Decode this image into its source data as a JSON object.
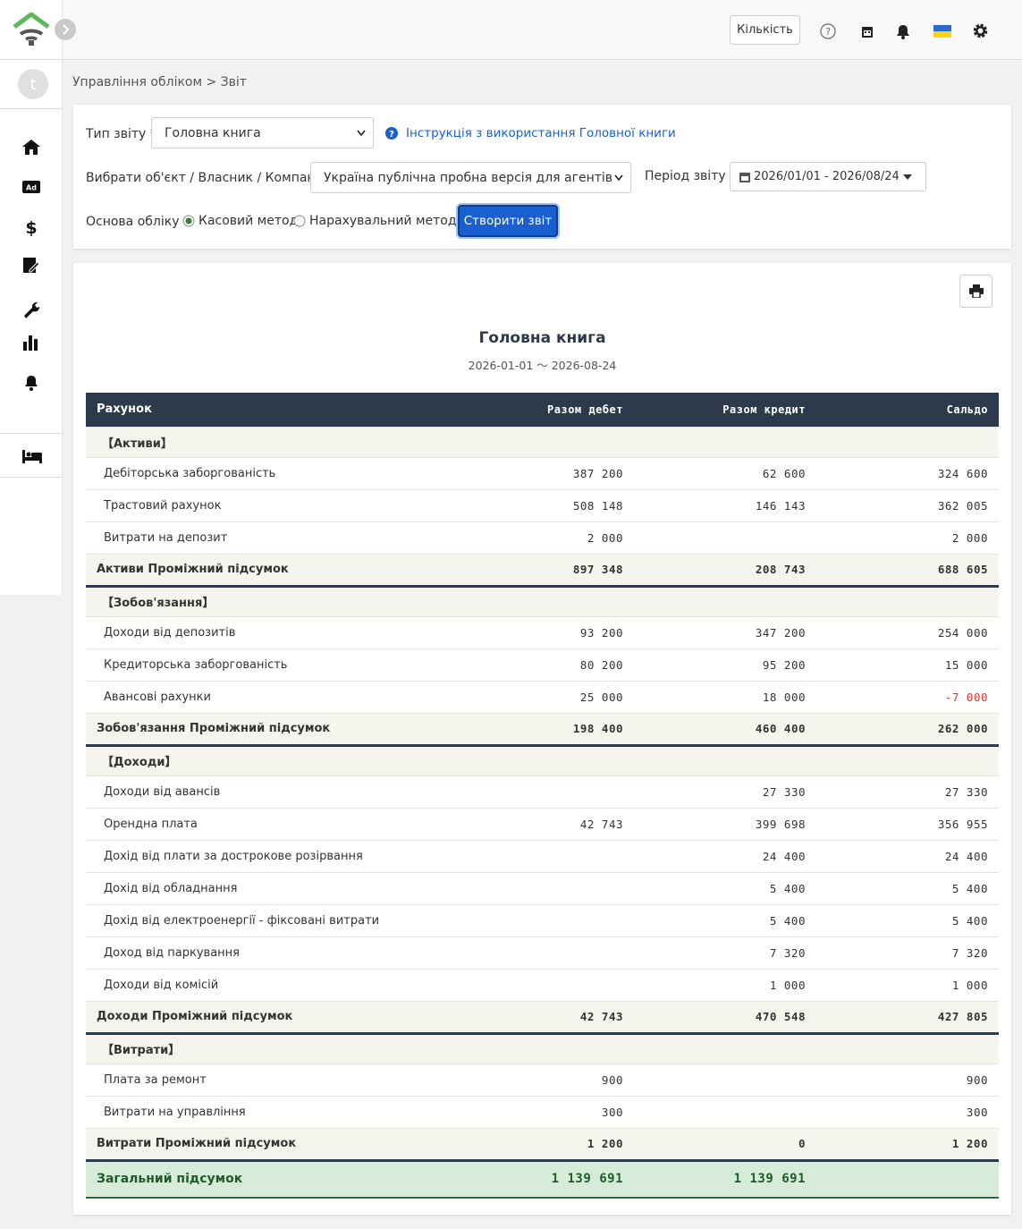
{
  "topbar": {
    "quantity_button": "Кількість"
  },
  "sidebar": {
    "avatar": "t"
  },
  "breadcrumb": "Управління обліком > Звіт",
  "form": {
    "report_type_label": "Тип звіту",
    "required_mark": "*",
    "report_type_value": "Головна книга",
    "help_link": "Інструкція з використання Головної книги",
    "object_label": "Вибрати об'єкт / Власник / Компанія",
    "object_value": "Україна публічна пробна версія для агентів",
    "period_label": "Період звіту",
    "period_value": "2026/01/01 - 2026/08/24",
    "basis_label": "Основа обліку",
    "basis_options": [
      "Касовий метод",
      "Нарахувальний метод"
    ],
    "submit": "Створити звіт"
  },
  "report": {
    "title": "Головна книга",
    "range": "2026-01-01 〜 2026-08-24",
    "columns": [
      "Рахунок",
      "Разом дебет",
      "Разом кредит",
      "Сальдо"
    ],
    "rows": [
      {
        "kind": "section",
        "label": "【Активи】"
      },
      {
        "kind": "item",
        "label": "Дебіторська заборгованість",
        "debit": "387 200",
        "credit": "62 600",
        "balance": "324 600"
      },
      {
        "kind": "item",
        "label": "Трастовий рахунок",
        "debit": "508 148",
        "credit": "146 143",
        "balance": "362 005"
      },
      {
        "kind": "item",
        "label": "Витрати на депозит",
        "debit": "2 000",
        "balance": "2 000"
      },
      {
        "kind": "subtotal",
        "label": "Активи Проміжний підсумок",
        "debit": "897 348",
        "credit": "208 743",
        "balance": "688 605"
      },
      {
        "kind": "section",
        "label": "【Зобов'язання】"
      },
      {
        "kind": "item",
        "label": "Доходи від депозитів",
        "debit": "93 200",
        "credit": "347 200",
        "balance": "254 000"
      },
      {
        "kind": "item",
        "label": "Кредиторська заборгованість",
        "debit": "80 200",
        "credit": "95 200",
        "balance": "15 000"
      },
      {
        "kind": "item",
        "label": "Авансові рахунки",
        "debit": "25 000",
        "credit": "18 000",
        "balance": "-7 000"
      },
      {
        "kind": "subtotal",
        "label": "Зобов'язання Проміжний підсумок",
        "debit": "198 400",
        "credit": "460 400",
        "balance": "262 000"
      },
      {
        "kind": "section",
        "label": "【Доходи】"
      },
      {
        "kind": "item",
        "label": "Доходи від авансів",
        "credit": "27 330",
        "balance": "27 330"
      },
      {
        "kind": "item",
        "label": "Орендна плата",
        "debit": "42 743",
        "credit": "399 698",
        "balance": "356 955"
      },
      {
        "kind": "item",
        "label": "Дохід від плати за дострокове розірвання",
        "credit": "24 400",
        "balance": "24 400"
      },
      {
        "kind": "item",
        "label": "Дохід від обладнання",
        "credit": "5 400",
        "balance": "5 400"
      },
      {
        "kind": "item",
        "label": "Дохід від електроенергії - фіксовані витрати",
        "credit": "5 400",
        "balance": "5 400"
      },
      {
        "kind": "item",
        "label": "Доход від паркування",
        "credit": "7 320",
        "balance": "7 320"
      },
      {
        "kind": "item",
        "label": "Доходи від комісій",
        "credit": "1 000",
        "balance": "1 000"
      },
      {
        "kind": "subtotal",
        "label": "Доходи Проміжний підсумок",
        "debit": "42 743",
        "credit": "470 548",
        "balance": "427 805"
      },
      {
        "kind": "section",
        "label": "【Витрати】"
      },
      {
        "kind": "item",
        "label": "Плата за ремонт",
        "debit": "900",
        "balance": "900"
      },
      {
        "kind": "item",
        "label": "Витрати на управління",
        "debit": "300",
        "balance": "300"
      },
      {
        "kind": "subtotal",
        "label": "Витрати Проміжний підсумок",
        "debit": "1 200",
        "credit": "0",
        "balance": "1 200"
      },
      {
        "kind": "total",
        "label": "Загальний підсумок",
        "debit": "1 139 691",
        "credit": "1 139 691"
      }
    ]
  }
}
